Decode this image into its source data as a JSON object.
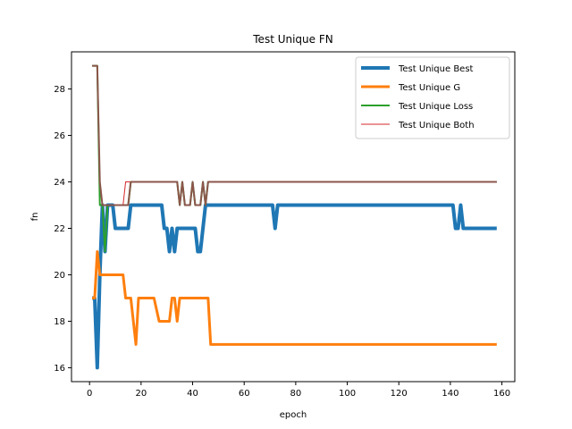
{
  "chart_data": {
    "type": "line",
    "title": "Test Unique FN",
    "xlabel": "epoch",
    "ylabel": "fn",
    "xlim": [
      -7,
      165
    ],
    "ylim": [
      15.4,
      29.6
    ],
    "xticks": [
      0,
      20,
      40,
      60,
      80,
      100,
      120,
      140,
      160
    ],
    "yticks": [
      16,
      18,
      20,
      22,
      24,
      26,
      28
    ],
    "grid": false,
    "legend_position": "top-right",
    "series": [
      {
        "name": "Test Unique Best",
        "color": "#1f77b4",
        "width": 4,
        "points": [
          [
            1,
            19
          ],
          [
            2,
            19
          ],
          [
            3,
            16
          ],
          [
            4,
            20
          ],
          [
            5,
            23
          ],
          [
            6,
            21
          ],
          [
            7,
            23
          ],
          [
            9,
            23
          ],
          [
            10,
            22
          ],
          [
            15,
            22
          ],
          [
            16,
            23
          ],
          [
            28,
            23
          ],
          [
            29,
            22
          ],
          [
            30,
            22
          ],
          [
            31,
            21
          ],
          [
            32,
            22
          ],
          [
            33,
            21
          ],
          [
            34,
            22
          ],
          [
            41,
            22
          ],
          [
            42,
            21
          ],
          [
            43,
            21
          ],
          [
            44,
            22
          ],
          [
            45,
            23
          ],
          [
            71,
            23
          ],
          [
            72,
            22
          ],
          [
            73,
            23
          ],
          [
            141,
            23
          ],
          [
            142,
            22
          ],
          [
            143,
            22
          ],
          [
            144,
            23
          ],
          [
            145,
            22
          ],
          [
            158,
            22
          ]
        ]
      },
      {
        "name": "Test Unique G",
        "color": "#ff7f0e",
        "width": 3,
        "points": [
          [
            1,
            19
          ],
          [
            2,
            19
          ],
          [
            3,
            21
          ],
          [
            4,
            20
          ],
          [
            13,
            20
          ],
          [
            14,
            19
          ],
          [
            16,
            19
          ],
          [
            18,
            17
          ],
          [
            19,
            19
          ],
          [
            24,
            19
          ],
          [
            25,
            19
          ],
          [
            27,
            18
          ],
          [
            31,
            18
          ],
          [
            32,
            19
          ],
          [
            33,
            19
          ],
          [
            34,
            18
          ],
          [
            35,
            19
          ],
          [
            46,
            19
          ],
          [
            47,
            17
          ],
          [
            158,
            17
          ]
        ]
      },
      {
        "name": "Test Unique Loss",
        "color": "#2ca02c",
        "width": 2,
        "points": [
          [
            1,
            29
          ],
          [
            3,
            29
          ],
          [
            4,
            23
          ],
          [
            5,
            23
          ],
          [
            6,
            21
          ],
          [
            7,
            23
          ],
          [
            15,
            23
          ],
          [
            16,
            24
          ],
          [
            34,
            24
          ],
          [
            35,
            23
          ],
          [
            36,
            24
          ],
          [
            37,
            23
          ],
          [
            39,
            23
          ],
          [
            40,
            24
          ],
          [
            41,
            23
          ],
          [
            43,
            23
          ],
          [
            44,
            24
          ],
          [
            45,
            23
          ],
          [
            46,
            24
          ],
          [
            158,
            24
          ]
        ]
      },
      {
        "name": "Test Unique Both",
        "color": "#d62728",
        "width": 1,
        "points": [
          [
            1,
            29
          ],
          [
            3,
            29
          ],
          [
            4,
            24
          ],
          [
            5,
            23
          ],
          [
            13,
            23
          ],
          [
            14,
            24
          ],
          [
            34,
            24
          ],
          [
            35,
            23
          ],
          [
            36,
            24
          ],
          [
            37,
            23
          ],
          [
            39,
            23
          ],
          [
            40,
            24
          ],
          [
            41,
            23
          ],
          [
            43,
            23
          ],
          [
            44,
            24
          ],
          [
            45,
            23
          ],
          [
            46,
            24
          ],
          [
            158,
            24
          ]
        ]
      },
      {
        "name": "Overlap",
        "color": "#8c564b",
        "width": 2,
        "points": [
          [
            1,
            29
          ],
          [
            3,
            29
          ],
          [
            4,
            24
          ],
          [
            5,
            23
          ],
          [
            15,
            23
          ],
          [
            16,
            24
          ],
          [
            34,
            24
          ],
          [
            35,
            23
          ],
          [
            36,
            24
          ],
          [
            37,
            23
          ],
          [
            39,
            23
          ],
          [
            40,
            24
          ],
          [
            41,
            23
          ],
          [
            43,
            23
          ],
          [
            44,
            24
          ],
          [
            45,
            23
          ],
          [
            46,
            24
          ],
          [
            158,
            24
          ]
        ],
        "legend": false
      }
    ]
  }
}
